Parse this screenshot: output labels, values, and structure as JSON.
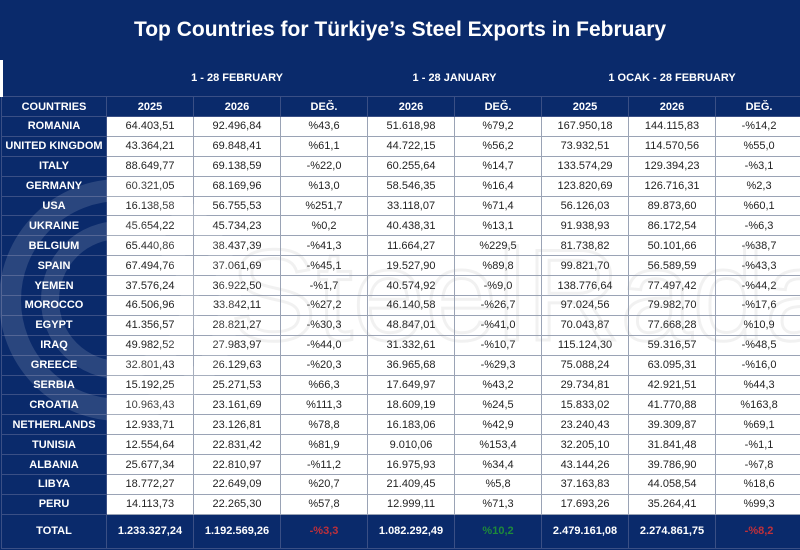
{
  "title": "Top Countries for Türkiye’s Steel Exports in February",
  "groups": [
    "1 - 28 FEBRUARY",
    "1 - 28 JANUARY",
    "1 OCAK  -  28 FEBRUARY"
  ],
  "headers": [
    "COUNTRIES",
    "2025",
    "2026",
    "DEĞ.",
    "2026",
    "DEĞ.",
    "2025",
    "2026",
    "DEĞ."
  ],
  "rows": [
    [
      "ROMANIA",
      "64.403,51",
      "92.496,84",
      "%43,6",
      "51.618,98",
      "%79,2",
      "167.950,18",
      "144.115,83",
      "-%14,2"
    ],
    [
      "UNITED KINGDOM",
      "43.364,21",
      "69.848,41",
      "%61,1",
      "44.722,15",
      "%56,2",
      "73.932,51",
      "114.570,56",
      "%55,0"
    ],
    [
      "ITALY",
      "88.649,77",
      "69.138,59",
      "-%22,0",
      "60.255,64",
      "%14,7",
      "133.574,29",
      "129.394,23",
      "-%3,1"
    ],
    [
      "GERMANY",
      "60.321,05",
      "68.169,96",
      "%13,0",
      "58.546,35",
      "%16,4",
      "123.820,69",
      "126.716,31",
      "%2,3"
    ],
    [
      "USA",
      "16.138,58",
      "56.755,53",
      "%251,7",
      "33.118,07",
      "%71,4",
      "56.126,03",
      "89.873,60",
      "%60,1"
    ],
    [
      "UKRAINE",
      "45.654,22",
      "45.734,23",
      "%0,2",
      "40.438,31",
      "%13,1",
      "91.938,93",
      "86.172,54",
      "-%6,3"
    ],
    [
      "BELGIUM",
      "65.440,86",
      "38.437,39",
      "-%41,3",
      "11.664,27",
      "%229,5",
      "81.738,82",
      "50.101,66",
      "-%38,7"
    ],
    [
      "SPAIN",
      "67.494,76",
      "37.061,69",
      "-%45,1",
      "19.527,90",
      "%89,8",
      "99.821,70",
      "56.589,59",
      "-%43,3"
    ],
    [
      "YEMEN",
      "37.576,24",
      "36.922,50",
      "-%1,7",
      "40.574,92",
      "-%9,0",
      "138.776,64",
      "77.497,42",
      "-%44,2"
    ],
    [
      "MOROCCO",
      "46.506,96",
      "33.842,11",
      "-%27,2",
      "46.140,58",
      "-%26,7",
      "97.024,56",
      "79.982,70",
      "-%17,6"
    ],
    [
      "EGYPT",
      "41.356,57",
      "28.821,27",
      "-%30,3",
      "48.847,01",
      "-%41,0",
      "70.043,87",
      "77.668,28",
      "%10,9"
    ],
    [
      "IRAQ",
      "49.982,52",
      "27.983,97",
      "-%44,0",
      "31.332,61",
      "-%10,7",
      "115.124,30",
      "59.316,57",
      "-%48,5"
    ],
    [
      "GREECE",
      "32.801,43",
      "26.129,63",
      "-%20,3",
      "36.965,68",
      "-%29,3",
      "75.088,24",
      "63.095,31",
      "-%16,0"
    ],
    [
      "SERBIA",
      "15.192,25",
      "25.271,53",
      "%66,3",
      "17.649,97",
      "%43,2",
      "29.734,81",
      "42.921,51",
      "%44,3"
    ],
    [
      "CROATIA",
      "10.963,43",
      "23.161,69",
      "%111,3",
      "18.609,19",
      "%24,5",
      "15.833,02",
      "41.770,88",
      "%163,8"
    ],
    [
      "NETHERLANDS",
      "12.933,71",
      "23.126,81",
      "%78,8",
      "16.183,06",
      "%42,9",
      "23.240,43",
      "39.309,87",
      "%69,1"
    ],
    [
      "TUNISIA",
      "12.554,64",
      "22.831,42",
      "%81,9",
      "9.010,06",
      "%153,4",
      "32.205,10",
      "31.841,48",
      "-%1,1"
    ],
    [
      "ALBANIA",
      "25.677,34",
      "22.810,97",
      "-%11,2",
      "16.975,93",
      "%34,4",
      "43.144,26",
      "39.786,90",
      "-%7,8"
    ],
    [
      "LIBYA",
      "18.772,27",
      "22.649,09",
      "%20,7",
      "21.409,45",
      "%5,8",
      "37.163,83",
      "44.058,54",
      "%18,6"
    ],
    [
      "PERU",
      "14.113,73",
      "22.265,30",
      "%57,8",
      "12.999,11",
      "%71,3",
      "17.693,26",
      "35.264,41",
      "%99,3"
    ]
  ],
  "total": [
    "TOTAL",
    "1.233.327,24",
    "1.192.569,26",
    "-%3,3",
    "1.082.292,49",
    "%10,2",
    "2.479.161,08",
    "2.274.861,75",
    "-%8,2"
  ],
  "watermark": "SteelRadar",
  "colors": {
    "navy": "#0a2a6b",
    "positive": "#2aa84a",
    "negative": "#b02828"
  }
}
